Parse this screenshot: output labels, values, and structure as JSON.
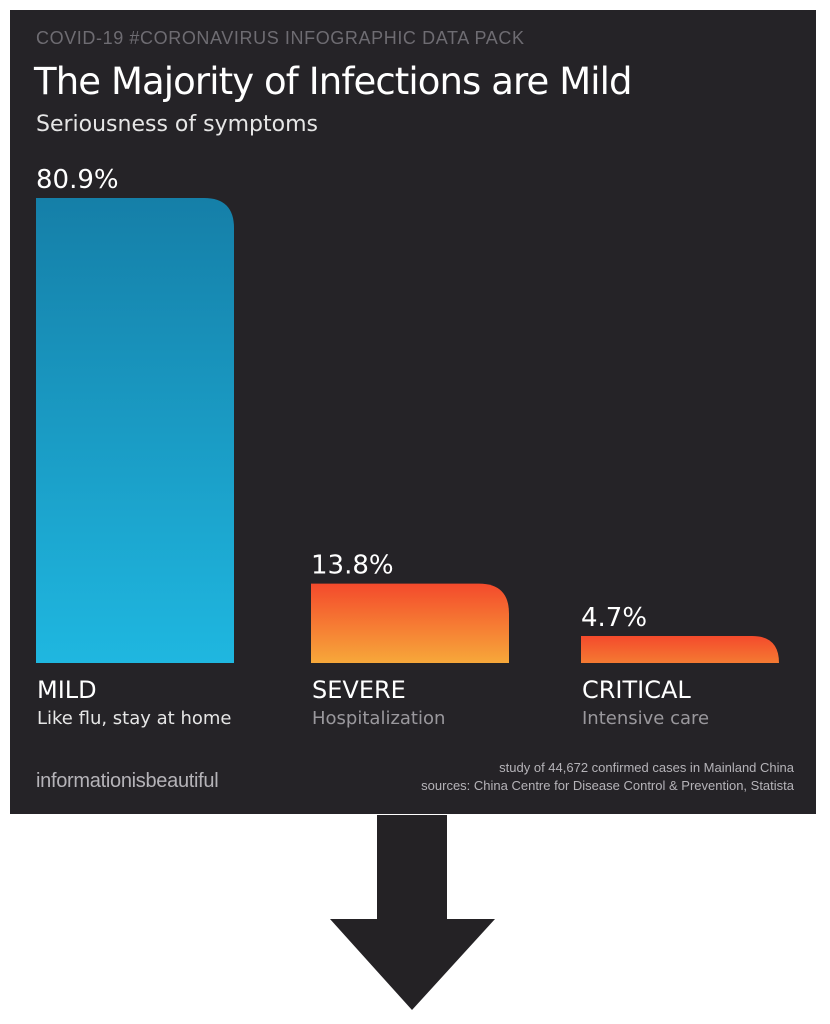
{
  "header": {
    "overtitle": "COVID-19 #CORONAVIRUS INFOGRAPHIC DATA PACK"
  },
  "chart_data": {
    "type": "bar",
    "title": "The Majority of Infections are Mild",
    "subtitle": "Seriousness of symptoms",
    "categories": [
      "MILD",
      "SEVERE",
      "CRITICAL"
    ],
    "descriptions": [
      "Like flu, stay at home",
      "Hospitalization",
      "Intensive care"
    ],
    "values": [
      80.9,
      13.8,
      4.7
    ],
    "value_labels": [
      "80.9%",
      "13.8%",
      "4.7%"
    ],
    "unit": "%",
    "ylim": [
      0,
      80.9
    ],
    "grid": false,
    "legend": "none",
    "colors": {
      "mild": [
        "#157fa8",
        "#1fb7e0"
      ],
      "severe": [
        "#f44a2c",
        "#f7a83a"
      ],
      "critical": [
        "#f44a2c",
        "#f47a32"
      ],
      "desc_mild": "#e6e6e6",
      "desc_other": "#9a989d"
    }
  },
  "footer": {
    "brand": "informationisbeautiful",
    "source_line1": "study of 44,672 confirmed cases in Mainland China",
    "source_line2": "sources: China Centre for Disease Control & Prevention, Statista"
  },
  "colors": {
    "panel_background": "#252327",
    "arrow": "#242225"
  },
  "icons": {
    "arrow": "down-arrow-icon"
  }
}
